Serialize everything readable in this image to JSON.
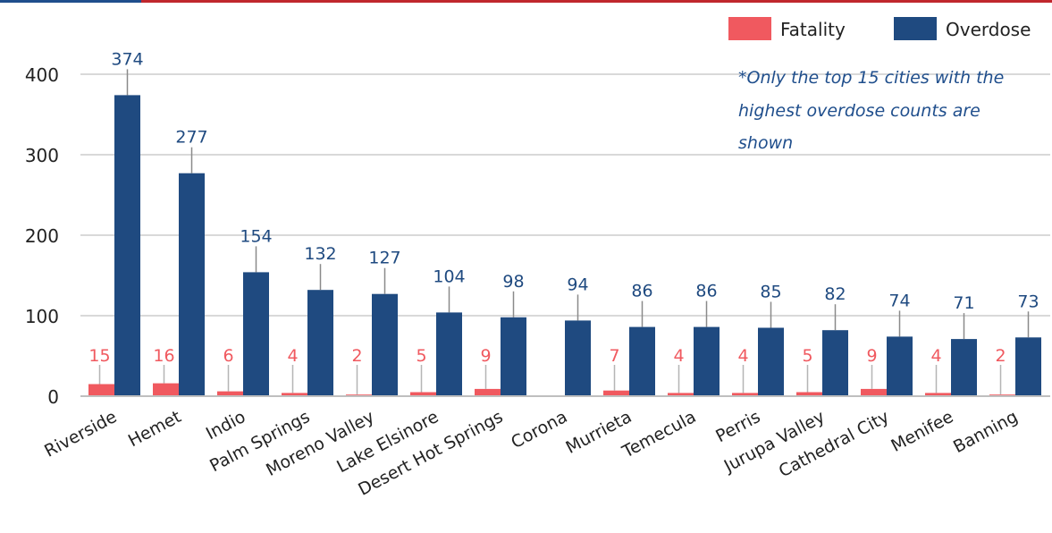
{
  "chart_data": {
    "type": "bar",
    "categories": [
      "Riverside",
      "Hemet",
      "Indio",
      "Palm Springs",
      "Moreno Valley",
      "Lake Elsinore",
      "Desert Hot Springs",
      "Corona",
      "Murrieta",
      "Temecula",
      "Perris",
      "Jurupa Valley",
      "Cathedral City",
      "Menifee",
      "Banning"
    ],
    "series": [
      {
        "name": "Fatality",
        "color": "#f0595f",
        "values": [
          15,
          16,
          6,
          4,
          2,
          5,
          9,
          null,
          7,
          4,
          4,
          5,
          9,
          4,
          2
        ],
        "labels": [
          "15",
          "16",
          "6",
          "4",
          "2",
          "5",
          "9",
          "",
          "7",
          "4",
          "4",
          "5",
          "9",
          "4",
          "2"
        ]
      },
      {
        "name": "Overdose",
        "color": "#1f4a80",
        "values": [
          374,
          277,
          154,
          132,
          127,
          104,
          98,
          94,
          86,
          86,
          85,
          82,
          74,
          71,
          73
        ],
        "labels": [
          "374",
          "277",
          "154",
          "132",
          "127",
          "104",
          "98",
          "94",
          "86",
          "86",
          "85",
          "82",
          "74",
          "71",
          "73"
        ]
      }
    ],
    "yticks": [
      "0",
      "100",
      "200",
      "300",
      "400"
    ],
    "ylim": [
      0,
      400
    ],
    "grid": true,
    "legend_position": "top-right",
    "note_lines": [
      "*Only the top 15 cities with the",
      "highest overdose counts are",
      "shown"
    ]
  }
}
